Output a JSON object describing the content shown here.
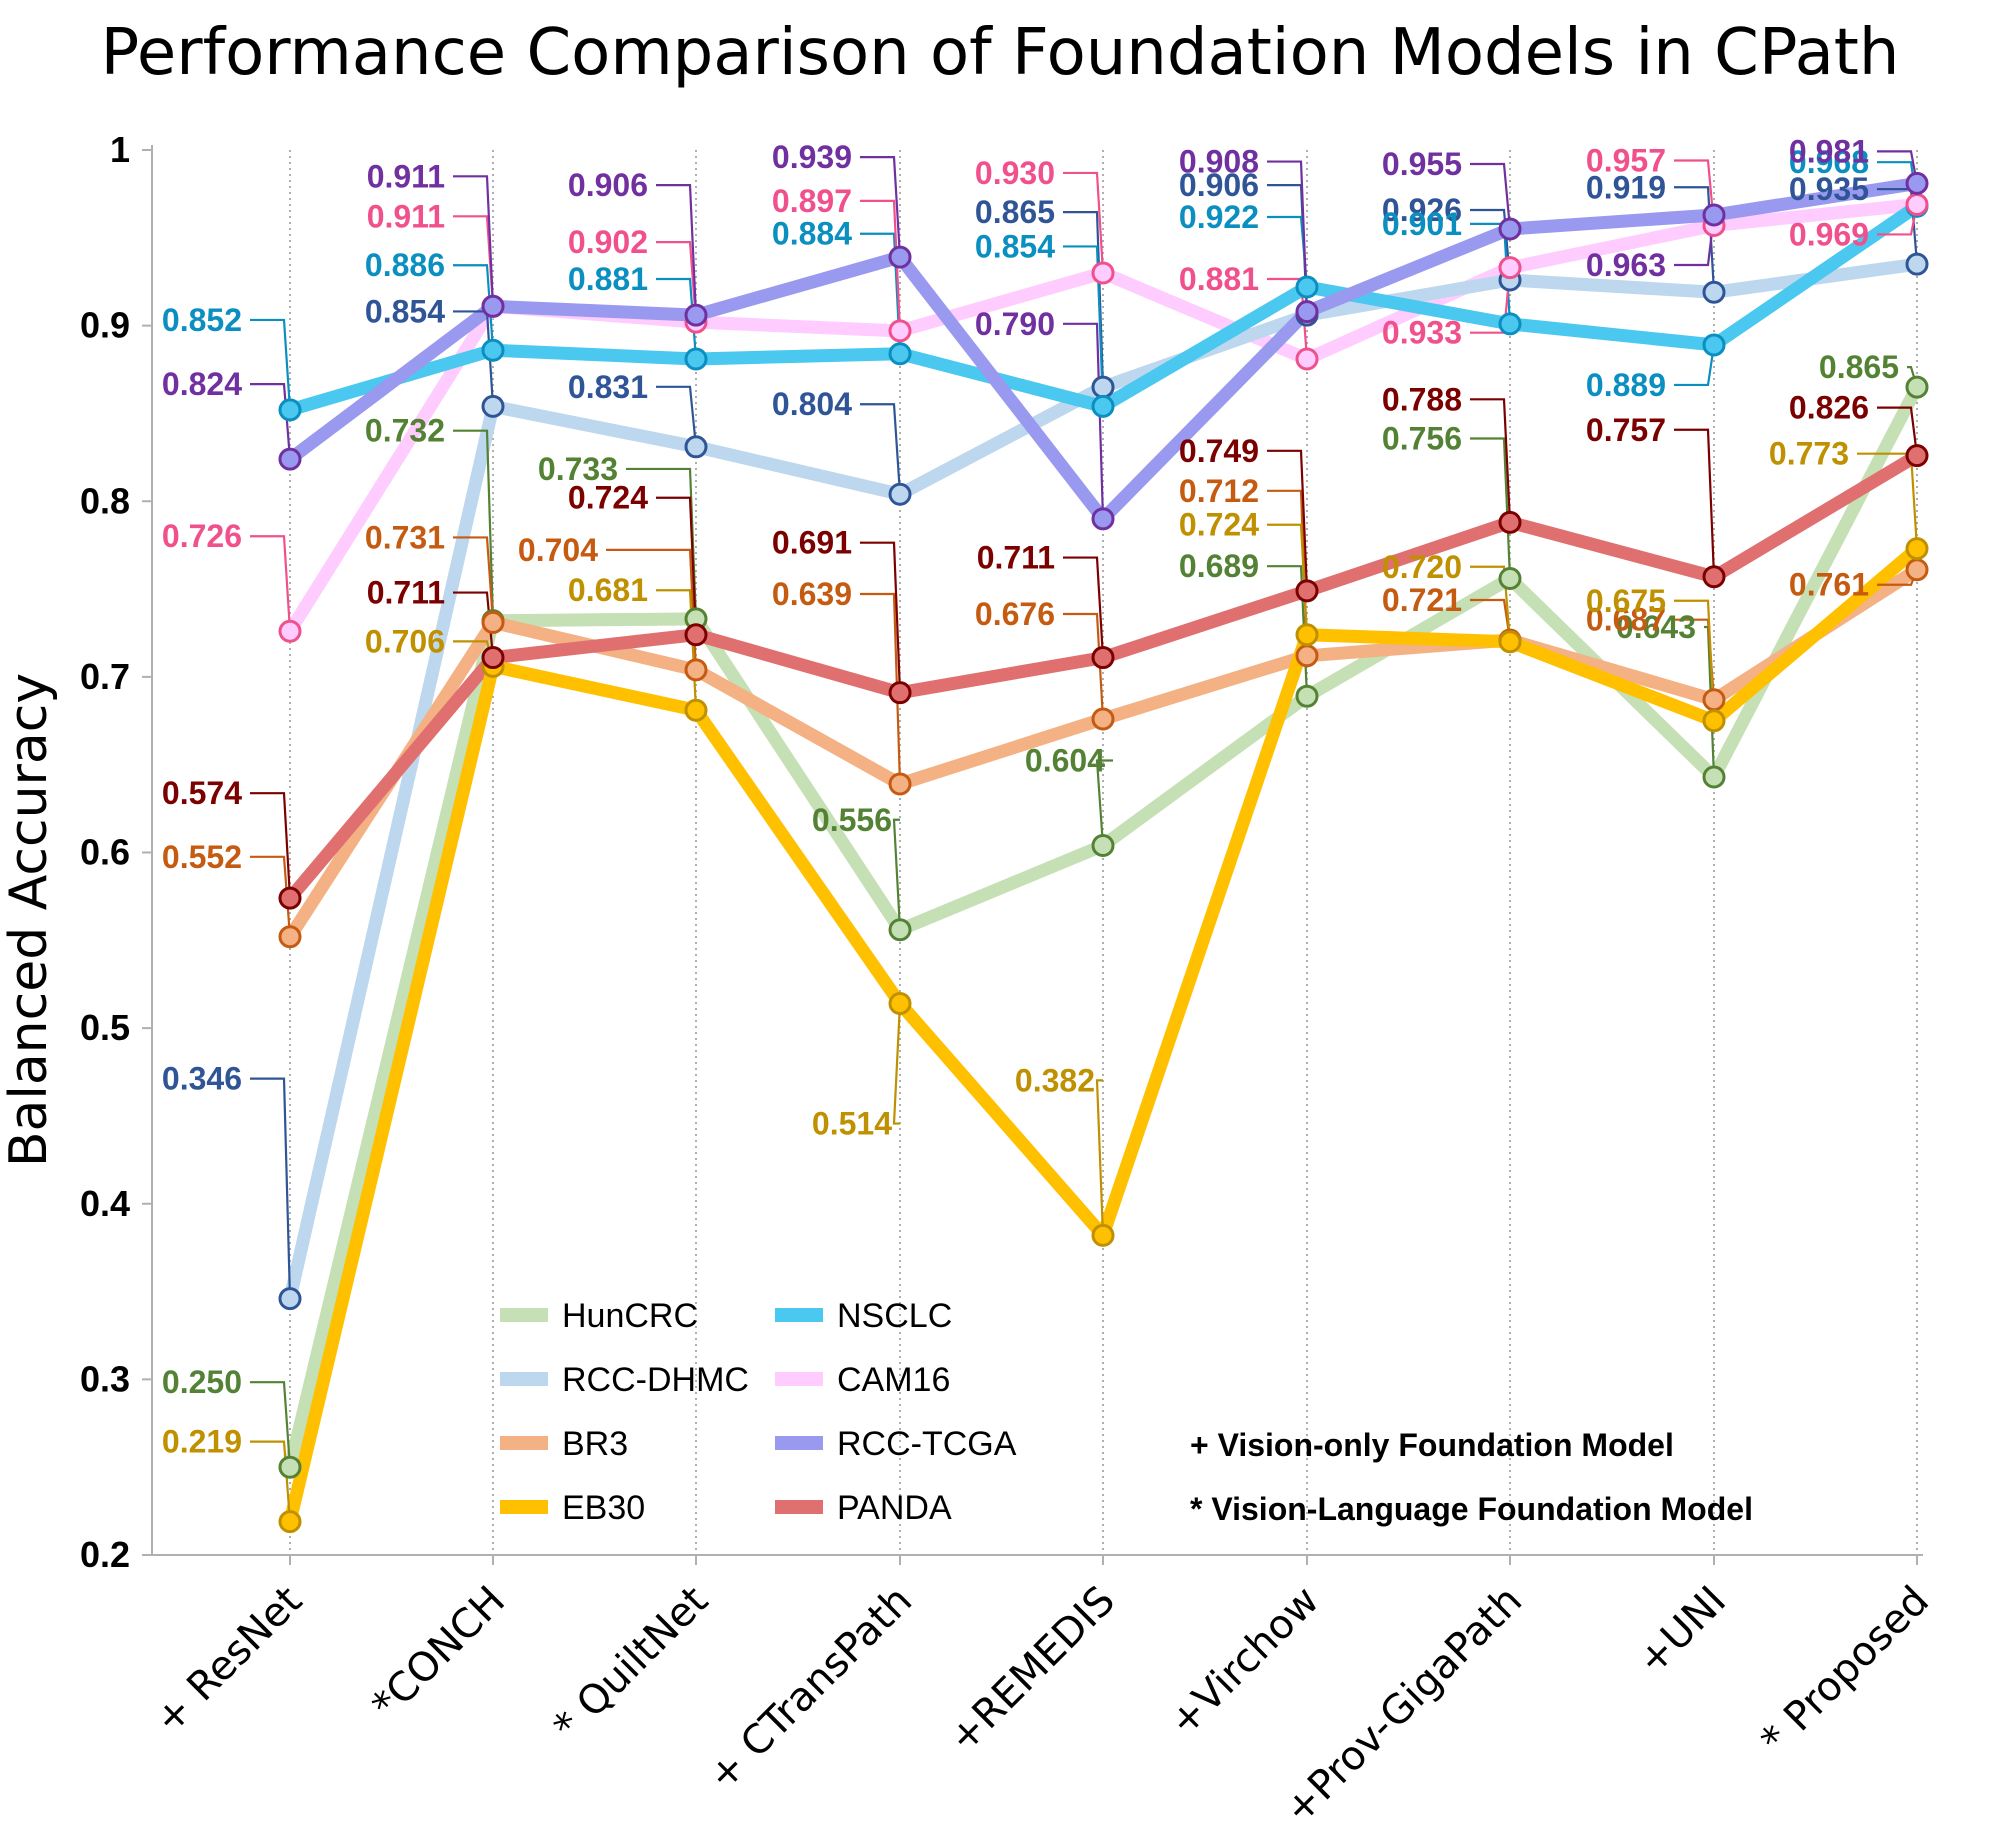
{
  "chart_data": {
    "type": "line",
    "title": "Performance Comparison of Foundation Models in CPath",
    "xlabel": "",
    "ylabel": "Balanced Accuracy",
    "ylim": [
      0.2,
      1.0
    ],
    "yticks": [
      "0.2",
      "0.3",
      "0.4",
      "0.5",
      "0.6",
      "0.7",
      "0.8",
      "0.9",
      "1"
    ],
    "categories": [
      "+ ResNet",
      "*CONCH",
      "* QuiltNet",
      "+ CTransPath",
      "+REMEDIS",
      "+Virchow",
      "+Prov-GigaPath",
      "+UNI",
      "* Proposed"
    ],
    "grid": "vertical dotted lines at each category",
    "legend_position": "bottom-center",
    "series": [
      {
        "name": "HunCRC",
        "color": "#c5e0b4",
        "label_color": "#548235",
        "values": [
          0.25,
          0.732,
          0.733,
          0.556,
          0.604,
          0.689,
          0.756,
          0.643,
          0.865
        ]
      },
      {
        "name": "RCC-DHMC",
        "color": "#bdd7ee",
        "label_color": "#2f5597",
        "values": [
          0.346,
          0.854,
          0.831,
          0.804,
          0.865,
          0.906,
          0.926,
          0.919,
          0.935
        ]
      },
      {
        "name": "BR3",
        "color": "#f4b183",
        "label_color": "#c55a11",
        "values": [
          0.552,
          0.731,
          0.704,
          0.639,
          0.676,
          0.712,
          0.721,
          0.687,
          0.761
        ]
      },
      {
        "name": "EB30",
        "color": "#ffc000",
        "label_color": "#bf9000",
        "values": [
          0.219,
          0.706,
          0.681,
          0.514,
          0.382,
          0.724,
          0.72,
          0.675,
          0.773
        ]
      },
      {
        "name": "NSCLC",
        "color": "#4ac8f0",
        "label_color": "#0a8fc0",
        "values": [
          0.852,
          0.886,
          0.881,
          0.884,
          0.854,
          0.922,
          0.901,
          0.889,
          0.968
        ]
      },
      {
        "name": "CAM16",
        "color": "#ffccff",
        "label_color": "#f0508c",
        "values": [
          0.726,
          0.911,
          0.902,
          0.897,
          0.93,
          0.881,
          0.933,
          0.957,
          0.969
        ]
      },
      {
        "name": "RCC-TCGA",
        "color": "#9999f0",
        "label_color": "#7030a0",
        "values": [
          0.824,
          0.911,
          0.906,
          0.939,
          0.79,
          0.908,
          0.955,
          0.963,
          0.981
        ]
      },
      {
        "name": "PANDA",
        "color": "#e07070",
        "label_color": "#7b0000",
        "values": [
          0.574,
          0.711,
          0.724,
          0.691,
          0.711,
          0.749,
          0.788,
          0.757,
          0.826
        ]
      }
    ],
    "annotations": [
      "+ Vision-only Foundation Model",
      "* Vision-Language Foundation Model"
    ]
  },
  "colors": {
    "axis": "#b0b0b0",
    "grid": "#9a9a9a",
    "marker_ring": "#7a7a7a"
  }
}
